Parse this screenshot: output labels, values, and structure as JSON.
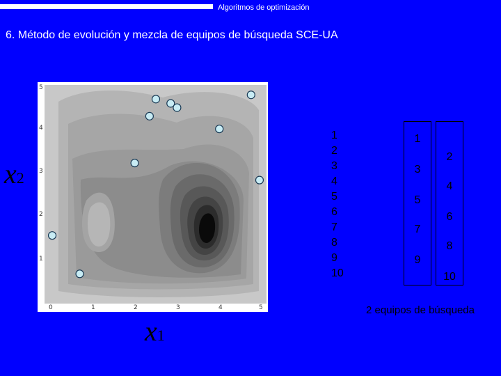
{
  "header": {
    "text": "Algoritmos de optimización"
  },
  "title": "6. Método de evolución y mezcla de equipos de búsqueda SCE-UA",
  "axes": {
    "y_var": {
      "base": "x",
      "sub": "2"
    },
    "x_var": {
      "base": "x",
      "sub": "1"
    }
  },
  "plot": {
    "x_ticks": [
      "0",
      "1",
      "2",
      "3",
      "4",
      "5"
    ],
    "y_ticks": [
      "1",
      "2",
      "3",
      "4",
      "5"
    ],
    "xlim": [
      0,
      5
    ],
    "ylim": [
      0,
      5
    ],
    "sample_points": [
      {
        "x": 0.05,
        "y": 1.5
      },
      {
        "x": 0.7,
        "y": 0.6
      },
      {
        "x": 2.0,
        "y": 3.2
      },
      {
        "x": 2.35,
        "y": 4.3
      },
      {
        "x": 2.5,
        "y": 4.7
      },
      {
        "x": 2.85,
        "y": 4.6
      },
      {
        "x": 3.0,
        "y": 4.5
      },
      {
        "x": 4.0,
        "y": 4.0
      },
      {
        "x": 4.95,
        "y": 2.8
      },
      {
        "x": 4.75,
        "y": 4.8
      }
    ]
  },
  "all_points": [
    "1",
    "2",
    "3",
    "4",
    "5",
    "6",
    "7",
    "8",
    "9",
    "10"
  ],
  "team1": [
    "1",
    "3",
    "5",
    "7",
    "9"
  ],
  "team2": [
    "2",
    "4",
    "6",
    "8",
    "10"
  ],
  "caption": "2 equipos de búsqueda",
  "colors": {
    "background": "#0000ff",
    "point_fill": "#c8ecf4",
    "point_stroke": "#1a3a55"
  }
}
